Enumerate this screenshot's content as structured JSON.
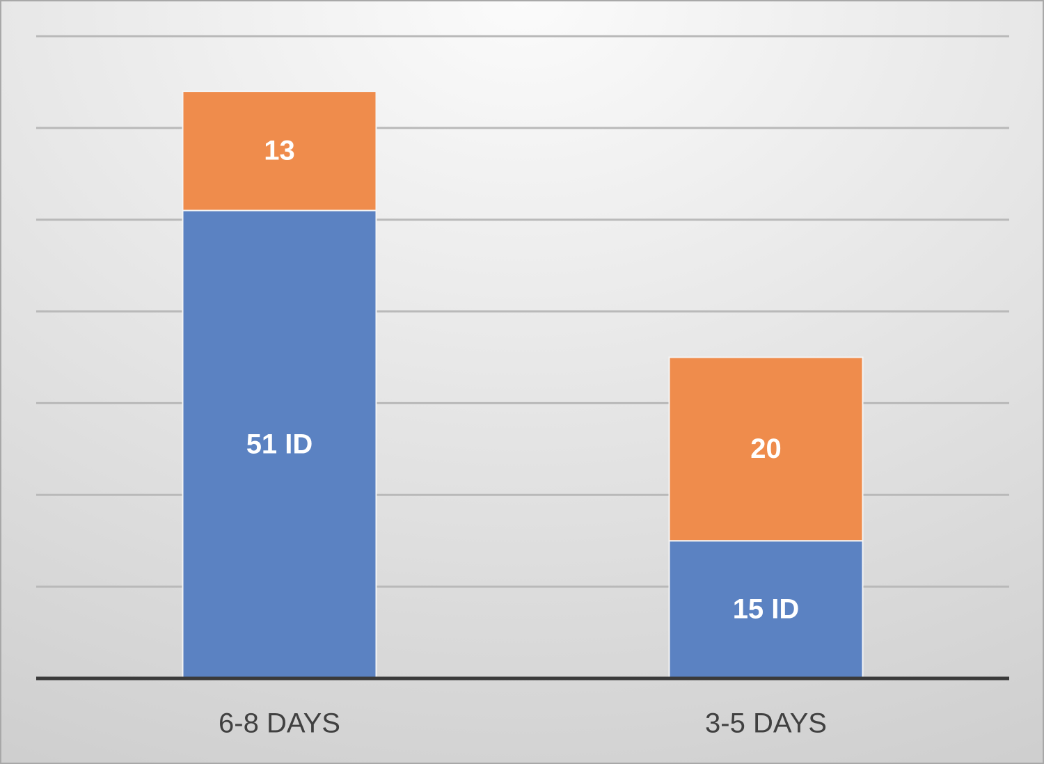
{
  "chart_data": {
    "type": "stacked-bar",
    "categories": [
      "6-8 DAYS",
      "3-5 DAYS"
    ],
    "series": [
      {
        "color": "#5b82c2",
        "values": [
          51,
          15
        ],
        "value_labels": [
          "51 ID",
          "15 ID"
        ]
      },
      {
        "color": "#ef8c4c",
        "values": [
          13,
          20
        ]
      }
    ],
    "ylim": [
      0,
      70
    ],
    "yticks": [
      0,
      10,
      20,
      30,
      40,
      50,
      60,
      70
    ],
    "grid": true
  }
}
